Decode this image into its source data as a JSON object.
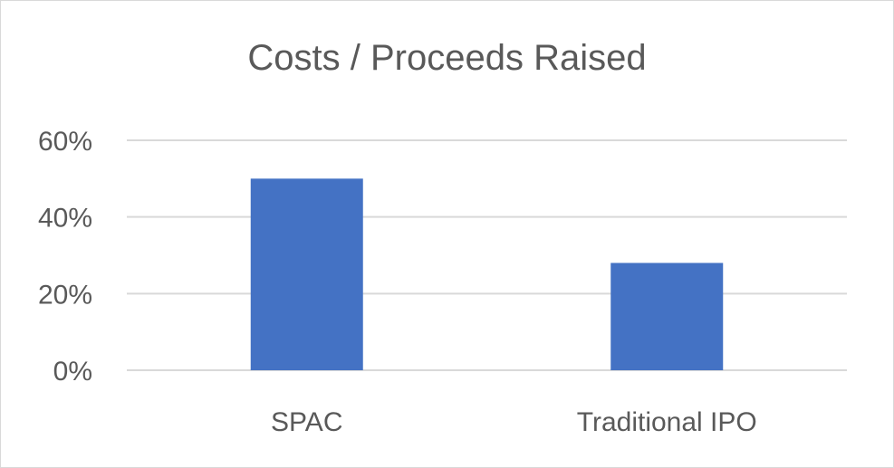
{
  "chart_data": {
    "type": "bar",
    "title": "Costs / Proceeds Raised",
    "categories": [
      "SPAC",
      "Traditional IPO"
    ],
    "values": [
      50,
      28
    ],
    "value_unit": "%",
    "ylim": [
      0,
      60
    ],
    "yticks": [
      "0%",
      "20%",
      "40%",
      "60%"
    ],
    "grid": true,
    "legend": "none",
    "bar_color": "#4472C4",
    "xlabel": "",
    "ylabel": ""
  }
}
